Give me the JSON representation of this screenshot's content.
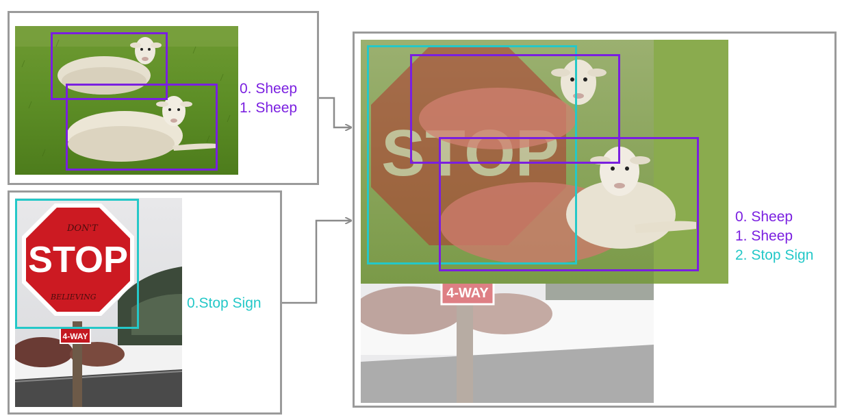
{
  "colors": {
    "sheep": "#7a1fe0",
    "stop_sign": "#24c8c8",
    "frame": "#9a9a9a",
    "arrow": "#8a8a8a"
  },
  "panels": {
    "sheep_image": {
      "labels": [
        "0. Sheep",
        "1. Sheep"
      ]
    },
    "stop_image": {
      "labels": [
        "0.Stop Sign"
      ],
      "sign_text": "STOP",
      "sub_sign_text": "4-WAY",
      "graffiti_top": "DON'T",
      "graffiti_bottom": "BELIEVING"
    },
    "mixed_image": {
      "labels": [
        "0. Sheep",
        "1. Sheep",
        "2. Stop Sign"
      ],
      "sign_text": "STOP",
      "sub_sign_text": "4-WAY"
    }
  },
  "icons": [
    "sheep-photo",
    "stop-sign-photo",
    "arrow-icon"
  ]
}
